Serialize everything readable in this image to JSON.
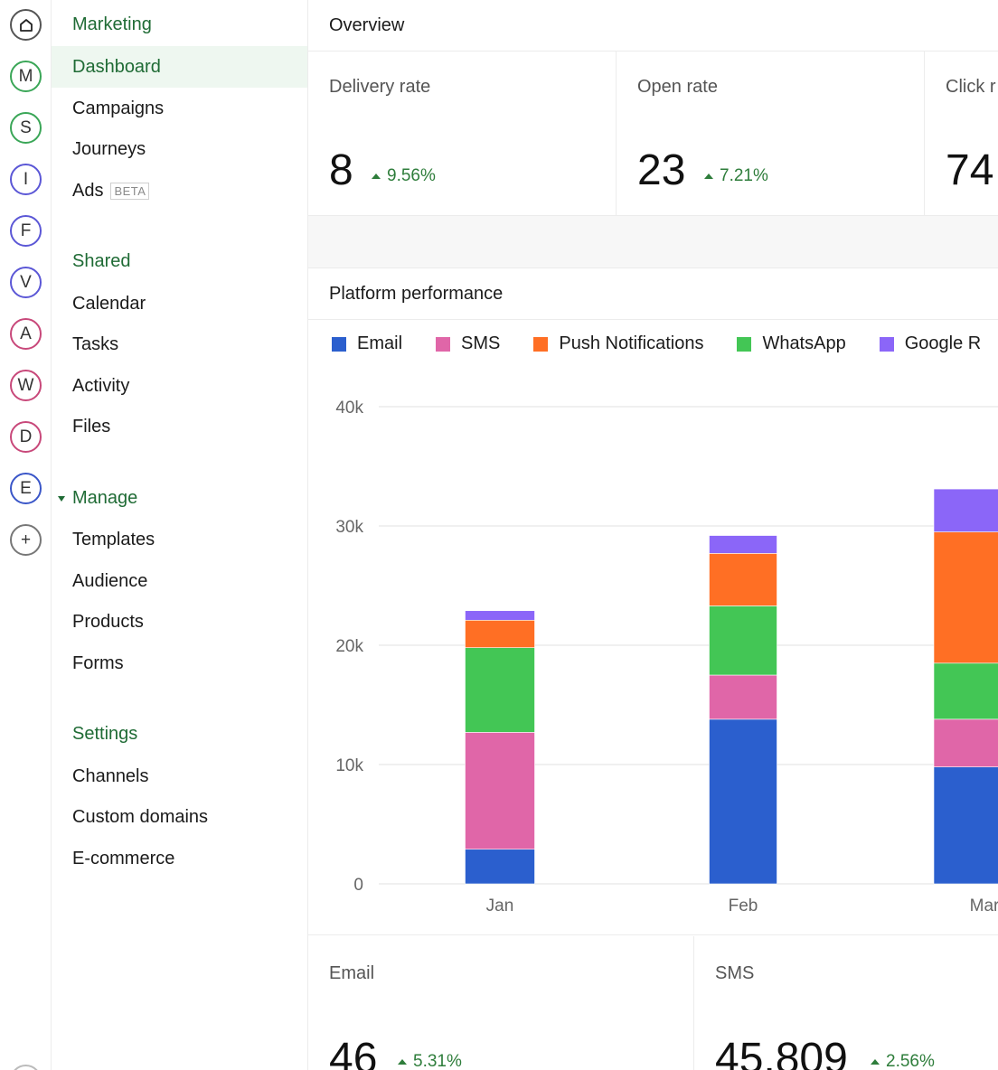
{
  "rail": {
    "items": [
      {
        "letter": "",
        "icon": "home-icon",
        "color": "#555555"
      },
      {
        "letter": "M",
        "color": "#3aa657"
      },
      {
        "letter": "S",
        "color": "#3aa657"
      },
      {
        "letter": "I",
        "color": "#5b57d6"
      },
      {
        "letter": "F",
        "color": "#5b57d6"
      },
      {
        "letter": "V",
        "color": "#5b57d6"
      },
      {
        "letter": "A",
        "color": "#c8487a"
      },
      {
        "letter": "W",
        "color": "#c8487a"
      },
      {
        "letter": "D",
        "color": "#c8487a"
      },
      {
        "letter": "E",
        "color": "#3a56c8"
      },
      {
        "letter": "+",
        "icon": "plus-icon",
        "color": "#777777"
      }
    ]
  },
  "sidebar": {
    "marketing": {
      "title": "Marketing",
      "items": [
        "Dashboard",
        "Campaigns",
        "Journeys",
        "Ads"
      ],
      "ads_badge": "BETA"
    },
    "shared": {
      "title": "Shared",
      "items": [
        "Calendar",
        "Tasks",
        "Activity",
        "Files"
      ]
    },
    "manage": {
      "title": "Manage",
      "items": [
        "Templates",
        "Audience",
        "Products",
        "Forms"
      ]
    },
    "settings": {
      "title": "Settings",
      "items": [
        "Channels",
        "Custom domains",
        "E-commerce"
      ]
    }
  },
  "overview": {
    "title": "Overview",
    "kpis": [
      {
        "label": "Delivery rate",
        "value": "8",
        "delta": "9.56%"
      },
      {
        "label": "Open rate",
        "value": "23",
        "delta": "7.21%"
      },
      {
        "label": "Click r",
        "value": "74"
      }
    ]
  },
  "platform": {
    "title": "Platform performance",
    "legend": [
      {
        "name": "Email",
        "color": "#2b5fce"
      },
      {
        "name": "SMS",
        "color": "#e066a8"
      },
      {
        "name": "Push Notifications",
        "color": "#ff6f24"
      },
      {
        "name": "WhatsApp",
        "color": "#43c655"
      },
      {
        "name": "Google R",
        "color": "#8b66f8"
      }
    ]
  },
  "chart_data": {
    "type": "bar",
    "stacked": true,
    "categories": [
      "Jan",
      "Feb",
      "Mar"
    ],
    "yticks": [
      "0",
      "10k",
      "20k",
      "30k",
      "40k"
    ],
    "ylim": [
      0,
      40000
    ],
    "grid": true,
    "series": [
      {
        "name": "Email",
        "values": [
          2900,
          13800,
          9800
        ]
      },
      {
        "name": "SMS",
        "values": [
          9800,
          3700,
          4000
        ]
      },
      {
        "name": "WhatsApp",
        "values": [
          7100,
          5800,
          4700
        ]
      },
      {
        "name": "Push Notifications",
        "values": [
          2300,
          4400,
          11000
        ]
      },
      {
        "name": "Google R",
        "values": [
          800,
          1500,
          3600
        ]
      }
    ]
  },
  "channels": [
    {
      "label": "Email",
      "value": "46",
      "delta": "5.31%"
    },
    {
      "label": "SMS",
      "value": "45,809",
      "delta": "2.56%"
    }
  ]
}
